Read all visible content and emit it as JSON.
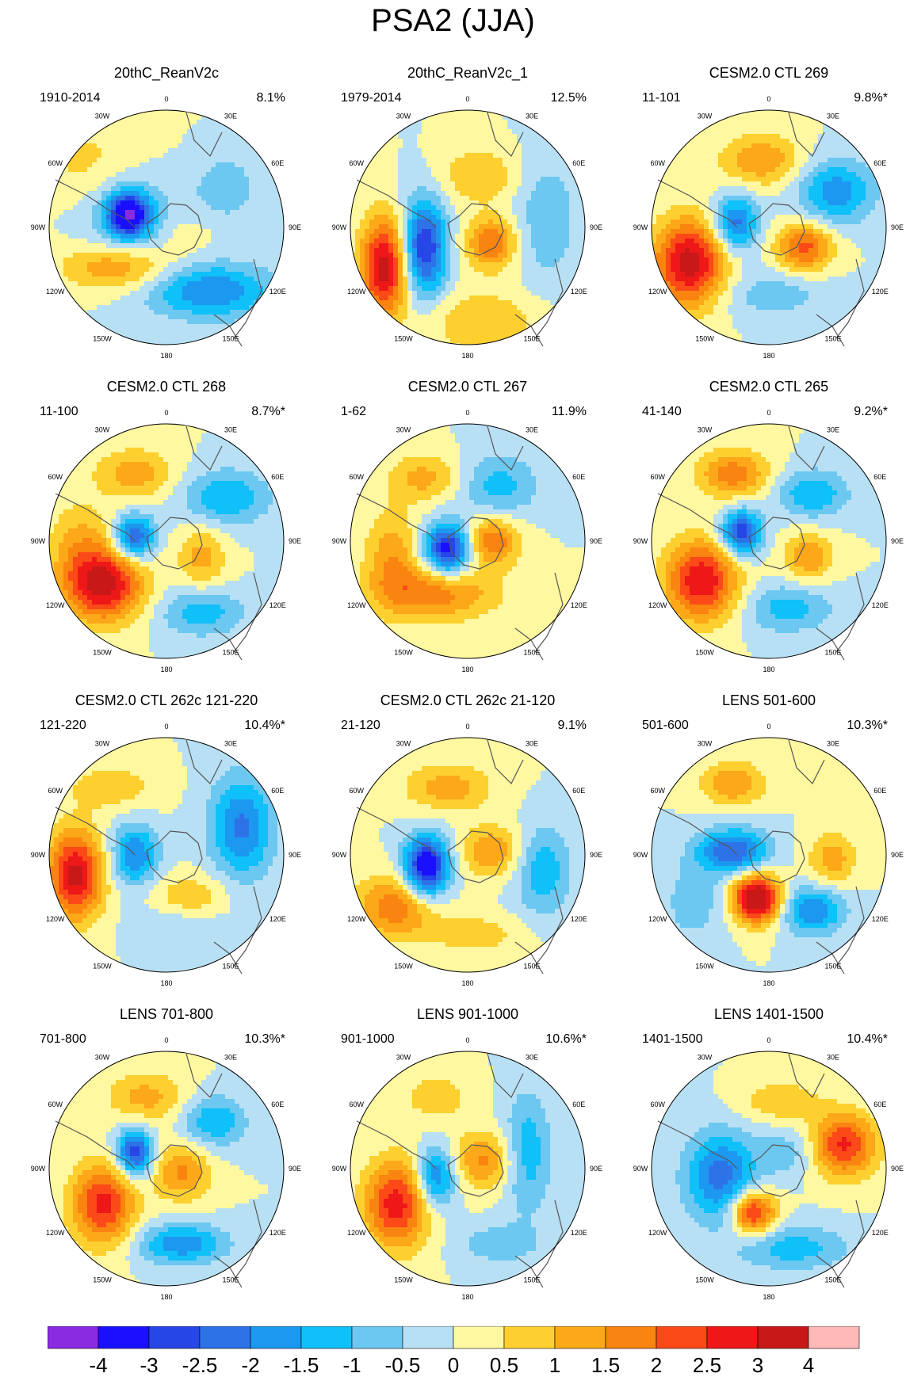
{
  "title": "PSA2 (JJA)",
  "lon_labels": [
    "0",
    "30E",
    "60E",
    "90E",
    "120E",
    "150E",
    "180",
    "150W",
    "120W",
    "90W",
    "60W",
    "30W"
  ],
  "panels": [
    {
      "title": "20thC_ReanV2c",
      "years": "1910-2014",
      "pct": "8.1%",
      "pattern": [
        {
          "x": -48,
          "y": -16,
          "sx": 26,
          "sy": 28,
          "a": -3.4
        },
        {
          "x": -48,
          "y": -16,
          "sx": 60,
          "sy": 60,
          "a": -1.0
        },
        {
          "x": -60,
          "y": 50,
          "sx": 70,
          "sy": 30,
          "a": 1.6
        },
        {
          "x": -95,
          "y": -80,
          "sx": 70,
          "sy": 55,
          "a": 0.7
        },
        {
          "x": 55,
          "y": 80,
          "sx": 80,
          "sy": 35,
          "a": -2.0
        },
        {
          "x": 75,
          "y": -50,
          "sx": 40,
          "sy": 40,
          "a": -0.9
        },
        {
          "x": 25,
          "y": 10,
          "sx": 30,
          "sy": 25,
          "a": 0.4
        }
      ]
    },
    {
      "title": "20thC_ReanV2c_1",
      "years": "1979-2014",
      "pct": "12.5%",
      "pattern": [
        {
          "x": -105,
          "y": 50,
          "sx": 30,
          "sy": 62,
          "a": 3.3
        },
        {
          "x": -55,
          "y": 25,
          "sx": 28,
          "sy": 60,
          "a": -3.1
        },
        {
          "x": 30,
          "y": 20,
          "sx": 32,
          "sy": 32,
          "a": 2.0
        },
        {
          "x": 15,
          "y": -65,
          "sx": 50,
          "sy": 35,
          "a": 1.0
        },
        {
          "x": 100,
          "y": -10,
          "sx": 40,
          "sy": 80,
          "a": -0.9
        },
        {
          "x": 20,
          "y": 120,
          "sx": 70,
          "sy": 40,
          "a": 1.0
        }
      ]
    },
    {
      "title": "CESM2.0 CTL 269",
      "years": "11-101",
      "pct": "9.8%*",
      "pattern": [
        {
          "x": -100,
          "y": 45,
          "sx": 45,
          "sy": 55,
          "a": 3.3
        },
        {
          "x": -42,
          "y": -5,
          "sx": 28,
          "sy": 35,
          "a": -2.3
        },
        {
          "x": -10,
          "y": -85,
          "sx": 50,
          "sy": 32,
          "a": 1.5
        },
        {
          "x": 85,
          "y": -45,
          "sx": 48,
          "sy": 40,
          "a": -1.8
        },
        {
          "x": 45,
          "y": 25,
          "sx": 35,
          "sy": 30,
          "a": 2.2
        },
        {
          "x": 5,
          "y": 85,
          "sx": 70,
          "sy": 30,
          "a": -0.8
        }
      ]
    },
    {
      "title": "CESM2.0 CTL 268",
      "years": "11-100",
      "pct": "8.7%*",
      "pattern": [
        {
          "x": -80,
          "y": 55,
          "sx": 50,
          "sy": 45,
          "a": 3.3
        },
        {
          "x": -40,
          "y": -5,
          "sx": 25,
          "sy": 28,
          "a": -2.6
        },
        {
          "x": -40,
          "y": -85,
          "sx": 50,
          "sy": 32,
          "a": 1.3
        },
        {
          "x": 75,
          "y": -55,
          "sx": 55,
          "sy": 35,
          "a": -1.5
        },
        {
          "x": 45,
          "y": 20,
          "sx": 30,
          "sy": 40,
          "a": 1.2
        },
        {
          "x": 45,
          "y": 90,
          "sx": 55,
          "sy": 30,
          "a": -1.3
        },
        {
          "x": -110,
          "y": 0,
          "sx": 40,
          "sy": 50,
          "a": 1.0
        }
      ]
    },
    {
      "title": "CESM2.0 CTL 267",
      "years": "1-62",
      "pct": "11.9%",
      "pattern": [
        {
          "x": -25,
          "y": 10,
          "sx": 30,
          "sy": 32,
          "a": -3.5
        },
        {
          "x": -40,
          "y": 65,
          "sx": 75,
          "sy": 35,
          "a": 1.8
        },
        {
          "x": -95,
          "y": 20,
          "sx": 35,
          "sy": 60,
          "a": 1.3
        },
        {
          "x": 30,
          "y": 0,
          "sx": 35,
          "sy": 30,
          "a": 2.0
        },
        {
          "x": 40,
          "y": -70,
          "sx": 50,
          "sy": 40,
          "a": -1.2
        },
        {
          "x": -55,
          "y": -80,
          "sx": 45,
          "sy": 30,
          "a": 1.2
        }
      ]
    },
    {
      "title": "CESM2.0 CTL 265",
      "years": "41-140",
      "pct": "9.2%*",
      "pattern": [
        {
          "x": -85,
          "y": 50,
          "sx": 45,
          "sy": 50,
          "a": 3.0
        },
        {
          "x": -35,
          "y": -10,
          "sx": 25,
          "sy": 28,
          "a": -3.0
        },
        {
          "x": -45,
          "y": -85,
          "sx": 45,
          "sy": 30,
          "a": 1.8
        },
        {
          "x": 55,
          "y": -60,
          "sx": 45,
          "sy": 30,
          "a": -1.5
        },
        {
          "x": 50,
          "y": 20,
          "sx": 30,
          "sy": 30,
          "a": 1.5
        },
        {
          "x": 25,
          "y": 85,
          "sx": 55,
          "sy": 30,
          "a": -1.3
        }
      ]
    },
    {
      "title": "CESM2.0 CTL 262c 121-220",
      "years": "121-220",
      "pct": "10.4%*",
      "pattern": [
        {
          "x": -115,
          "y": 25,
          "sx": 35,
          "sy": 55,
          "a": 3.2
        },
        {
          "x": -40,
          "y": 0,
          "sx": 30,
          "sy": 38,
          "a": -2.0
        },
        {
          "x": -70,
          "y": -85,
          "sx": 55,
          "sy": 28,
          "a": 0.9
        },
        {
          "x": 95,
          "y": -35,
          "sx": 40,
          "sy": 65,
          "a": -2.1
        },
        {
          "x": 30,
          "y": 55,
          "sx": 50,
          "sy": 30,
          "a": 1.0
        },
        {
          "x": 20,
          "y": 85,
          "sx": 60,
          "sy": 28,
          "a": -0.6
        }
      ]
    },
    {
      "title": "CESM2.0 CTL 262c 21-120",
      "years": "21-120",
      "pct": "9.1%",
      "pattern": [
        {
          "x": -52,
          "y": 15,
          "sx": 28,
          "sy": 38,
          "a": -3.8
        },
        {
          "x": -90,
          "y": 65,
          "sx": 50,
          "sy": 40,
          "a": 1.9
        },
        {
          "x": 30,
          "y": -5,
          "sx": 38,
          "sy": 32,
          "a": 1.5
        },
        {
          "x": -25,
          "y": -85,
          "sx": 55,
          "sy": 30,
          "a": 1.3
        },
        {
          "x": 95,
          "y": 20,
          "sx": 35,
          "sy": 55,
          "a": -1.4
        },
        {
          "x": 10,
          "y": 100,
          "sx": 60,
          "sy": 25,
          "a": 0.8
        }
      ]
    },
    {
      "title": "LENS 501-600",
      "years": "501-600",
      "pct": "10.3%*",
      "pattern": [
        {
          "x": -15,
          "y": 55,
          "sx": 30,
          "sy": 30,
          "a": 4.0
        },
        {
          "x": -45,
          "y": -5,
          "sx": 45,
          "sy": 28,
          "a": -2.5
        },
        {
          "x": -45,
          "y": -90,
          "sx": 40,
          "sy": 28,
          "a": 1.5
        },
        {
          "x": 55,
          "y": 70,
          "sx": 40,
          "sy": 30,
          "a": -2.0
        },
        {
          "x": 80,
          "y": 5,
          "sx": 30,
          "sy": 35,
          "a": 1.3
        },
        {
          "x": -95,
          "y": 60,
          "sx": 40,
          "sy": 50,
          "a": -0.8
        }
      ]
    },
    {
      "title": "LENS 701-800",
      "years": "701-800",
      "pct": "10.3%*",
      "pattern": [
        {
          "x": -80,
          "y": 45,
          "sx": 40,
          "sy": 50,
          "a": 2.7
        },
        {
          "x": -40,
          "y": -20,
          "sx": 22,
          "sy": 30,
          "a": -3.0
        },
        {
          "x": -25,
          "y": -90,
          "sx": 50,
          "sy": 32,
          "a": 1.2
        },
        {
          "x": 60,
          "y": -60,
          "sx": 40,
          "sy": 32,
          "a": -1.5
        },
        {
          "x": 20,
          "y": 5,
          "sx": 35,
          "sy": 35,
          "a": 1.6
        },
        {
          "x": 20,
          "y": 95,
          "sx": 55,
          "sy": 25,
          "a": -1.9
        }
      ]
    },
    {
      "title": "LENS 901-1000",
      "years": "901-1000",
      "pct": "10.6%*",
      "pattern": [
        {
          "x": -90,
          "y": 45,
          "sx": 40,
          "sy": 55,
          "a": 2.8
        },
        {
          "x": -40,
          "y": 10,
          "sx": 25,
          "sy": 38,
          "a": -2.2
        },
        {
          "x": 20,
          "y": -10,
          "sx": 40,
          "sy": 35,
          "a": 1.6
        },
        {
          "x": 75,
          "y": -20,
          "sx": 30,
          "sy": 75,
          "a": -1.4
        },
        {
          "x": -40,
          "y": -90,
          "sx": 45,
          "sy": 32,
          "a": 0.8
        },
        {
          "x": 40,
          "y": 95,
          "sx": 50,
          "sy": 25,
          "a": -0.9
        }
      ]
    },
    {
      "title": "LENS 1401-1500",
      "years": "1401-1500",
      "pct": "10.4%*",
      "pattern": [
        {
          "x": -60,
          "y": 10,
          "sx": 45,
          "sy": 55,
          "a": -2.3
        },
        {
          "x": 95,
          "y": -30,
          "sx": 40,
          "sy": 40,
          "a": 2.6
        },
        {
          "x": 15,
          "y": -85,
          "sx": 50,
          "sy": 25,
          "a": 1.0
        },
        {
          "x": -20,
          "y": 55,
          "sx": 28,
          "sy": 28,
          "a": 2.9
        },
        {
          "x": 30,
          "y": 100,
          "sx": 70,
          "sy": 28,
          "a": -1.3
        },
        {
          "x": 25,
          "y": -20,
          "sx": 35,
          "sy": 30,
          "a": -0.8
        }
      ]
    }
  ],
  "colorbar": {
    "labels": [
      "-4",
      "-3",
      "-2.5",
      "-2",
      "-1.5",
      "-1",
      "-0.5",
      "0",
      "0.5",
      "1",
      "1.5",
      "2",
      "2.5",
      "3",
      "4"
    ],
    "colors": [
      "#8a2be2",
      "#1a10ff",
      "#2646e6",
      "#2e72e8",
      "#1c98f0",
      "#10c0f8",
      "#6cc8f0",
      "#b8e0f4",
      "#fff8a0",
      "#fdd030",
      "#fca818",
      "#f98410",
      "#fb4a18",
      "#ee1818",
      "#c81818",
      "#ffb8b8"
    ]
  }
}
